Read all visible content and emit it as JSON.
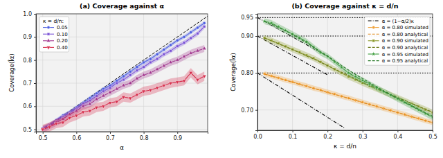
{
  "chart_data": [
    {
      "type": "line",
      "title": "(a) Coverage against α",
      "x_label": "α",
      "y_label": "Coverage(Îα)",
      "xlim": [
        0.48,
        0.99
      ],
      "ylim": [
        0.49,
        1.0
      ],
      "xticks": [
        0.5,
        0.6,
        0.7,
        0.8,
        0.9
      ],
      "yticks": [
        0.5,
        0.6,
        0.7,
        0.8,
        0.9,
        {
          "value": 1.0,
          "label": "1.0"
        }
      ],
      "grid": true,
      "legend": "upper left",
      "legend_title": "κ = d/n:",
      "reference": {
        "x": [
          0.5,
          0.99
        ],
        "values": [
          0.5,
          0.99
        ],
        "color": "#000000",
        "line_style": "dashed"
      },
      "x": [
        0.5,
        0.52,
        0.54,
        0.56,
        0.58,
        0.6,
        0.62,
        0.64,
        0.66,
        0.68,
        0.7,
        0.72,
        0.74,
        0.76,
        0.78,
        0.8,
        0.82,
        0.84,
        0.86,
        0.88,
        0.9,
        0.92,
        0.94,
        0.96,
        0.98
      ],
      "series": [
        {
          "name": "0.05",
          "color": "#4d5fe0",
          "marker": "circle",
          "line_style": "solid",
          "values": [
            0.505,
            0.52,
            0.54,
            0.56,
            0.575,
            0.595,
            0.615,
            0.635,
            0.655,
            0.675,
            0.69,
            0.71,
            0.73,
            0.75,
            0.77,
            0.79,
            0.805,
            0.825,
            0.845,
            0.865,
            0.885,
            0.9,
            0.92,
            0.94,
            0.96
          ],
          "errors": [
            0.006,
            0.006,
            0.007,
            0.007,
            0.007,
            0.008,
            0.008,
            0.008,
            0.008,
            0.008,
            0.008,
            0.008,
            0.008,
            0.008,
            0.008,
            0.008,
            0.008,
            0.008,
            0.008,
            0.008,
            0.008,
            0.008,
            0.008,
            0.008,
            0.008
          ]
        },
        {
          "name": "0.10",
          "color": "#7a52d6",
          "marker": "square",
          "line_style": "solid",
          "values": [
            0.505,
            0.515,
            0.535,
            0.555,
            0.57,
            0.59,
            0.61,
            0.625,
            0.645,
            0.665,
            0.68,
            0.7,
            0.715,
            0.735,
            0.755,
            0.77,
            0.79,
            0.805,
            0.825,
            0.84,
            0.86,
            0.875,
            0.895,
            0.915,
            0.945
          ],
          "errors": [
            0.01,
            0.01,
            0.01,
            0.01,
            0.01,
            0.01,
            0.01,
            0.01,
            0.01,
            0.01,
            0.01,
            0.01,
            0.01,
            0.01,
            0.01,
            0.01,
            0.01,
            0.01,
            0.01,
            0.01,
            0.01,
            0.01,
            0.01,
            0.01,
            0.01
          ]
        },
        {
          "name": "0.20",
          "color": "#a2388f",
          "marker": "triangle",
          "line_style": "solid",
          "values": [
            0.5,
            0.515,
            0.53,
            0.545,
            0.565,
            0.58,
            0.6,
            0.61,
            0.63,
            0.645,
            0.66,
            0.675,
            0.69,
            0.7,
            0.72,
            0.735,
            0.745,
            0.76,
            0.775,
            0.79,
            0.8,
            0.815,
            0.83,
            0.84,
            0.85
          ],
          "errors": [
            0.015,
            0.015,
            0.015,
            0.015,
            0.015,
            0.015,
            0.015,
            0.015,
            0.015,
            0.015,
            0.015,
            0.015,
            0.015,
            0.015,
            0.015,
            0.015,
            0.015,
            0.015,
            0.015,
            0.015,
            0.015,
            0.015,
            0.015,
            0.015,
            0.015
          ]
        },
        {
          "name": "0.40",
          "color": "#d6304e",
          "marker": "triangle_down",
          "line_style": "solid",
          "values": [
            0.5,
            0.51,
            0.525,
            0.53,
            0.55,
            0.56,
            0.575,
            0.58,
            0.595,
            0.6,
            0.615,
            0.62,
            0.64,
            0.635,
            0.65,
            0.665,
            0.67,
            0.68,
            0.69,
            0.7,
            0.705,
            0.71,
            0.745,
            0.715,
            0.73
          ],
          "errors": [
            0.02,
            0.02,
            0.02,
            0.02,
            0.02,
            0.02,
            0.02,
            0.02,
            0.02,
            0.02,
            0.02,
            0.02,
            0.02,
            0.02,
            0.02,
            0.02,
            0.02,
            0.02,
            0.02,
            0.02,
            0.02,
            0.02,
            0.02,
            0.02,
            0.02
          ]
        }
      ]
    },
    {
      "type": "line",
      "title": "(b) Coverage against κ = d/n",
      "x_label": "κ = d/n",
      "y_label": "Coverage(Îα)",
      "xlim": [
        0.0,
        0.5
      ],
      "ylim": [
        0.645,
        0.96
      ],
      "xticks": [
        {
          "value": 0.0,
          "label": "0.0"
        },
        0.1,
        0.2,
        0.3,
        0.4,
        0.5
      ],
      "yticks": [
        {
          "value": 0.7,
          "label": "0.70"
        },
        {
          "value": 0.8,
          "label": "0.80"
        },
        {
          "value": 0.9,
          "label": "0.90"
        },
        0.95
      ],
      "grid": true,
      "legend": "upper right",
      "hlines": [
        0.95,
        0.9,
        0.8
      ],
      "x": [
        0.02,
        0.04,
        0.06,
        0.08,
        0.1,
        0.12,
        0.14,
        0.16,
        0.18,
        0.2,
        0.22,
        0.24,
        0.26,
        0.28,
        0.3,
        0.32,
        0.34,
        0.36,
        0.38,
        0.4,
        0.42,
        0.44,
        0.46,
        0.48,
        0.5
      ],
      "series": [
        {
          "name": "α = (1−α/2)κ",
          "color": "#000000",
          "line_style": "dashdot",
          "x": [
            0.0,
            0.2,
            null,
            0.0,
            0.2,
            null,
            0.0,
            0.25
          ],
          "values": [
            0.95,
            0.845,
            null,
            0.9,
            0.795,
            null,
            0.8,
            0.65
          ]
        },
        {
          "name": "α = 0.80 simulated",
          "color": "#f0a23c",
          "marker": "circle",
          "line_style": "solid",
          "values": [
            0.798,
            0.792,
            0.787,
            0.781,
            0.776,
            0.77,
            0.765,
            0.759,
            0.754,
            0.748,
            0.743,
            0.737,
            0.732,
            0.726,
            0.721,
            0.715,
            0.71,
            0.704,
            0.699,
            0.693,
            0.688,
            0.682,
            0.677,
            0.671,
            0.666
          ],
          "errors": [
            0.007,
            0.007,
            0.007,
            0.007,
            0.007,
            0.007,
            0.007,
            0.007,
            0.007,
            0.007,
            0.007,
            0.007,
            0.007,
            0.007,
            0.007,
            0.007,
            0.007,
            0.007,
            0.007,
            0.007,
            0.007,
            0.007,
            0.007,
            0.007,
            0.007
          ]
        },
        {
          "name": "α = 0.80 analytical",
          "color": "#e08a1e",
          "line_style": "dashed",
          "values": [
            0.797,
            0.791,
            0.786,
            0.78,
            0.775,
            0.769,
            0.764,
            0.758,
            0.753,
            0.747,
            0.742,
            0.737,
            0.731,
            0.726,
            0.72,
            0.715,
            0.709,
            0.704,
            0.698,
            0.693,
            0.687,
            0.682,
            0.676,
            0.671,
            0.665
          ]
        },
        {
          "name": "α = 0.90 simulated",
          "color": "#8c9a2c",
          "marker": "square",
          "line_style": "solid",
          "values": [
            0.895,
            0.888,
            0.88,
            0.872,
            0.864,
            0.856,
            0.848,
            0.84,
            0.83,
            0.82,
            0.81,
            0.8,
            0.79,
            0.782,
            0.773,
            0.765,
            0.757,
            0.749,
            0.741,
            0.733,
            0.725,
            0.717,
            0.709,
            0.701,
            0.693
          ],
          "errors": [
            0.008,
            0.008,
            0.008,
            0.008,
            0.008,
            0.008,
            0.008,
            0.008,
            0.008,
            0.008,
            0.008,
            0.008,
            0.008,
            0.008,
            0.008,
            0.008,
            0.008,
            0.008,
            0.008,
            0.008,
            0.008,
            0.008,
            0.008,
            0.008,
            0.008
          ]
        },
        {
          "name": "α = 0.90 analytical",
          "color": "#6f7d1c",
          "line_style": "dashed",
          "values": [
            0.894,
            0.887,
            0.879,
            0.871,
            0.863,
            0.855,
            0.846,
            0.838,
            0.829,
            0.82,
            0.811,
            0.802,
            0.793,
            0.784,
            0.775,
            0.767,
            0.758,
            0.75,
            0.742,
            0.734,
            0.726,
            0.718,
            0.71,
            0.702,
            0.694
          ]
        },
        {
          "name": "α = 0.95 simulated",
          "color": "#3a9b3a",
          "marker": "star",
          "line_style": "solid",
          "values": [
            0.94,
            0.935,
            0.925,
            0.915,
            0.905,
            0.895,
            0.885,
            0.87,
            0.855,
            0.845,
            0.83,
            0.815,
            0.8,
            0.79,
            0.78,
            0.77,
            0.76,
            0.75,
            0.74,
            0.73,
            0.72,
            0.71,
            0.7,
            0.69,
            0.68
          ],
          "errors": [
            0.008,
            0.008,
            0.008,
            0.008,
            0.008,
            0.008,
            0.008,
            0.008,
            0.008,
            0.008,
            0.008,
            0.008,
            0.008,
            0.008,
            0.008,
            0.008,
            0.008,
            0.008,
            0.008,
            0.008,
            0.008,
            0.008,
            0.008,
            0.008,
            0.008
          ]
        },
        {
          "name": "α = 0.95 analytical",
          "color": "#2e7d2e",
          "line_style": "dashed",
          "values": [
            0.94,
            0.932,
            0.923,
            0.914,
            0.904,
            0.893,
            0.882,
            0.87,
            0.858,
            0.846,
            0.833,
            0.82,
            0.808,
            0.796,
            0.785,
            0.774,
            0.763,
            0.752,
            0.742,
            0.732,
            0.722,
            0.712,
            0.702,
            0.692,
            0.683
          ]
        }
      ]
    }
  ]
}
